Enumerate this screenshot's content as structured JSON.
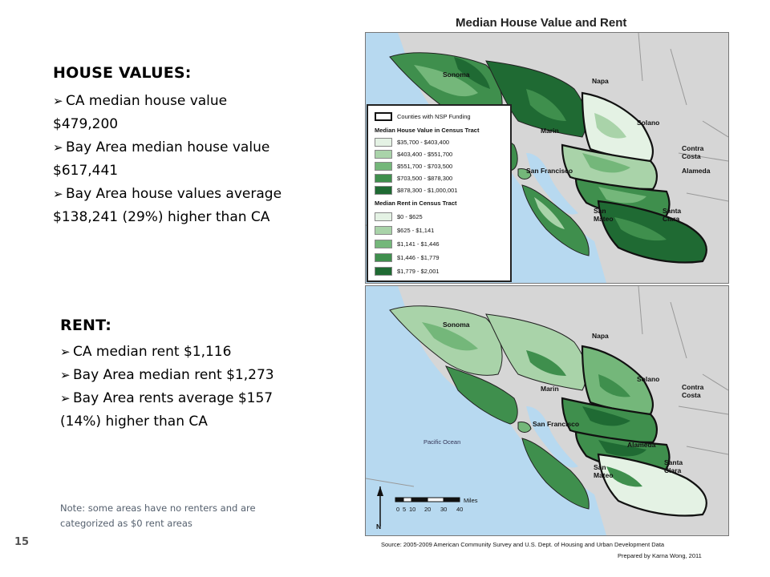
{
  "house_values": {
    "heading": "HOUSE VALUES:",
    "bullets": [
      {
        "line1": "CA median house value",
        "line2": "$479,200"
      },
      {
        "line1": "Bay Area median house value",
        "line2": "$617,441"
      },
      {
        "line1": "Bay Area house values average",
        "line2": "$138,241 (29%) higher than CA"
      }
    ]
  },
  "rent": {
    "heading": "RENT:",
    "bullets": [
      "CA median rent $1,116",
      "Bay Area median rent $1,273",
      "Bay Area rents average $157"
    ],
    "continuation": "(14%) higher than CA"
  },
  "note": {
    "line1": "Note:  some areas have no renters and are",
    "line2": "categorized as $0 rent areas"
  },
  "page_number": "15",
  "map": {
    "title": "Median House Value and Rent",
    "labels_top": [
      "Sonoma",
      "Napa",
      "Solano",
      "Marin",
      "Contra",
      "Costa",
      "San Francisco",
      "Alameda",
      "San",
      "Mateo",
      "Santa",
      "Clara"
    ],
    "labels_bottom": [
      "Sonoma",
      "Napa",
      "Solano",
      "Marin",
      "Contra",
      "Costa",
      "San Francisco",
      "Pacific Ocean",
      "Alameda",
      "San",
      "Mateo",
      "Santa",
      "Clara"
    ],
    "north": "N",
    "scale_ticks": [
      "0",
      "5",
      "10",
      "20",
      "30",
      "40"
    ],
    "scale_unit": "Miles",
    "colors": {
      "ocean": "#b7d9f0",
      "land_gray": "#d6d6d6",
      "c1": "#e4f2e4",
      "c2": "#a9d3a9",
      "c3": "#74b77a",
      "c4": "#3f8f4d",
      "c5": "#1f6a33"
    }
  },
  "legend": {
    "nsp": "Counties with NSP Funding",
    "house_header": "Median House Value in Census Tract",
    "house_items": [
      "$35,700 - $403,400",
      "$403,400 - $551,700",
      "$551,700 - $703,500",
      "$703,500 - $878,300",
      "$878,300 - $1,000,001"
    ],
    "rent_header": "Median Rent in Census Tract",
    "rent_items": [
      "$0 - $625",
      "$625 - $1,141",
      "$1,141 - $1,446",
      "$1,446 - $1,779",
      "$1,779 - $2,001"
    ]
  },
  "source": "Source:  2005-2009 American Community Survey and U.S. Dept. of Housing and Urban Development Data",
  "prepared_by": "Prepared by Karna Wong, 2011"
}
